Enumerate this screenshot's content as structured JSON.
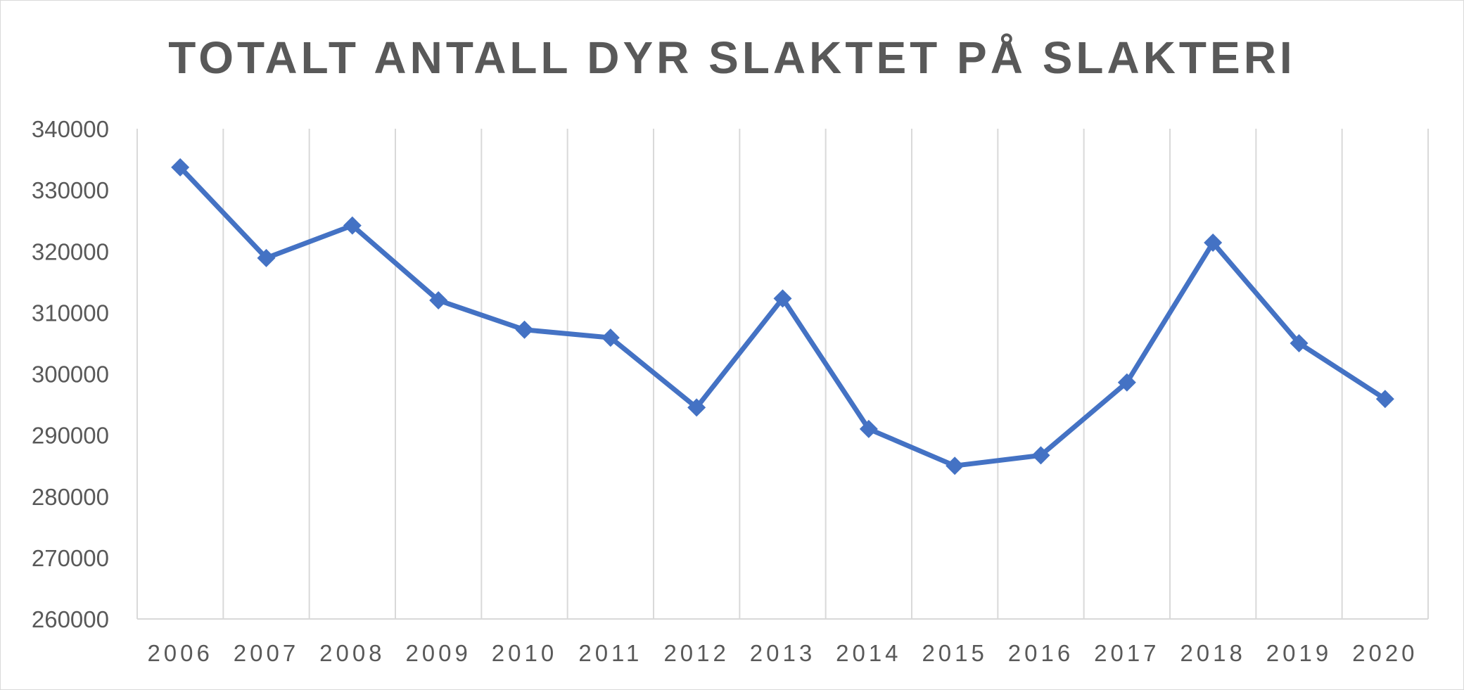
{
  "chart_data": {
    "type": "line",
    "title": "TOTALT ANTALL DYR SLAKTET PÅ SLAKTERI",
    "xlabel": "",
    "ylabel": "",
    "categories": [
      "2006",
      "2007",
      "2008",
      "2009",
      "2010",
      "2011",
      "2012",
      "2013",
      "2014",
      "2015",
      "2016",
      "2017",
      "2018",
      "2019",
      "2020"
    ],
    "series": [
      {
        "values": [
          333700,
          318900,
          324200,
          312000,
          307200,
          305900,
          294500,
          312300,
          291000,
          285000,
          286700,
          298600,
          321400,
          305000,
          295900
        ],
        "color": "#4472C4",
        "marker": "diamond"
      }
    ],
    "ylim": [
      260000,
      340000
    ],
    "ytick_step": 10000,
    "grid": "vertical",
    "legend": "none",
    "colors": {
      "line": "#4472C4",
      "grid": "#d9d9d9",
      "text": "#595959",
      "frame": "#d9d9d9"
    }
  }
}
